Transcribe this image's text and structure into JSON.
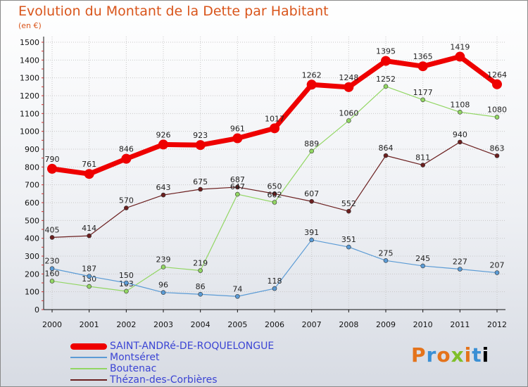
{
  "title": "Evolution du Montant de la Dette par Habitant",
  "unit": "(en €)",
  "logo": "Proxiti",
  "chart_data": {
    "type": "line",
    "x": [
      "2000",
      "2001",
      "2002",
      "2003",
      "2004",
      "2005",
      "2006",
      "2007",
      "2008",
      "2009",
      "2010",
      "2011",
      "2012"
    ],
    "ylim": [
      0,
      1500
    ],
    "yticks": [
      0,
      100,
      200,
      300,
      400,
      500,
      600,
      700,
      800,
      900,
      1000,
      1100,
      1200,
      1300,
      1400,
      1500
    ],
    "grid": true,
    "legend_position": "bottom-left",
    "series": [
      {
        "name": "Thézan-des-Corbières",
        "color": "#6b1f1f",
        "width": 1.2,
        "marker": 3,
        "values": [
          405,
          414,
          570,
          643,
          675,
          687,
          650,
          607,
          552,
          864,
          811,
          940,
          863
        ]
      },
      {
        "name": "Boutenac",
        "color": "#92d663",
        "width": 1.2,
        "marker": 3,
        "values": [
          160,
          130,
          103,
          239,
          219,
          647,
          602,
          889,
          1060,
          1252,
          1177,
          1108,
          1080
        ]
      },
      {
        "name": "Montséret",
        "color": "#5b9bd5",
        "width": 1.2,
        "marker": 3,
        "values": [
          230,
          187,
          150,
          96,
          86,
          74,
          118,
          391,
          351,
          275,
          245,
          227,
          207
        ]
      },
      {
        "name": "SAINT-ANDRé-DE-ROQUELONGUE",
        "color": "#ee0000",
        "width": 7,
        "marker": 7,
        "values": [
          790,
          761,
          846,
          926,
          923,
          961,
          1017,
          1262,
          1248,
          1395,
          1365,
          1419,
          1264
        ]
      }
    ]
  },
  "legend": [
    {
      "name": "SAINT-ANDRé-DE-ROQUELONGUE",
      "color": "#ee0000"
    },
    {
      "name": "Montséret",
      "color": "#5b9bd5"
    },
    {
      "name": "Boutenac",
      "color": "#92d663"
    },
    {
      "name": "Thézan-des-Corbières",
      "color": "#6b1f1f"
    }
  ]
}
